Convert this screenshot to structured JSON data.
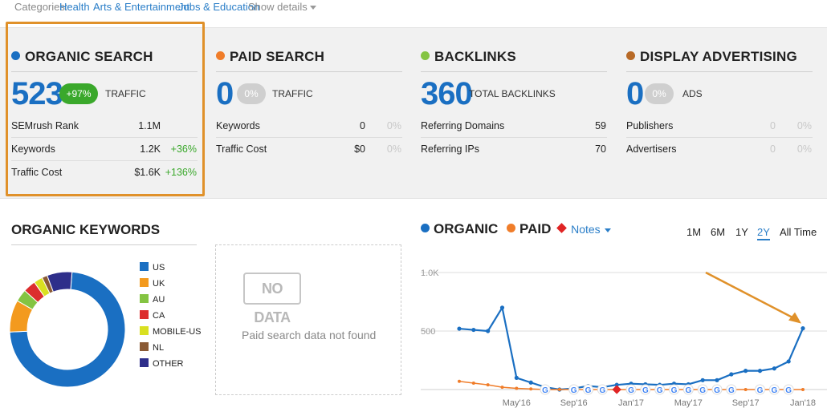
{
  "categories": {
    "label": "Categories:",
    "items": [
      "Health",
      "Arts & Entertainment",
      "Jobs & Education"
    ],
    "show_details": "Show details"
  },
  "colors": {
    "organic": "#1a6fc2",
    "paid": "#f07d2a",
    "backlinks": "#84c442",
    "display": "#b86a27",
    "positive": "#3aa82b",
    "highlight": "#e0912a"
  },
  "organic": {
    "title": "ORGANIC SEARCH",
    "value": "523",
    "change": "+97%",
    "unit": "TRAFFIC",
    "rows": [
      {
        "label": "SEMrush Rank",
        "value": "1.1M",
        "change": ""
      },
      {
        "label": "Keywords",
        "value": "1.2K",
        "change": "+36%"
      },
      {
        "label": "Traffic Cost",
        "value": "$1.6K",
        "change": "+136%"
      }
    ]
  },
  "paid": {
    "title": "PAID SEARCH",
    "value": "0",
    "change": "0%",
    "unit": "TRAFFIC",
    "rows": [
      {
        "label": "Keywords",
        "value": "0",
        "change": "0%"
      },
      {
        "label": "Traffic Cost",
        "value": "$0",
        "change": "0%"
      }
    ]
  },
  "backlinks": {
    "title": "BACKLINKS",
    "value": "360",
    "unit": "TOTAL BACKLINKS",
    "rows": [
      {
        "label": "Referring Domains",
        "value": "59"
      },
      {
        "label": "Referring IPs",
        "value": "70"
      }
    ]
  },
  "display": {
    "title": "DISPLAY ADVERTISING",
    "value": "0",
    "change": "0%",
    "unit": "ADS",
    "rows": [
      {
        "label": "Publishers",
        "value": "0",
        "change": "0%"
      },
      {
        "label": "Advertisers",
        "value": "0",
        "change": "0%"
      }
    ]
  },
  "organic_keywords": {
    "title": "ORGANIC KEYWORDS",
    "legend": [
      {
        "label": "US",
        "color": "#1a6fc2",
        "share": 0.73
      },
      {
        "label": "UK",
        "color": "#f39a1e",
        "share": 0.09
      },
      {
        "label": "AU",
        "color": "#84c442",
        "share": 0.035
      },
      {
        "label": "CA",
        "color": "#dc2e2e",
        "share": 0.035
      },
      {
        "label": "MOBILE-US",
        "color": "#d9e021",
        "share": 0.025
      },
      {
        "label": "NL",
        "color": "#8a5a35",
        "share": 0.015
      },
      {
        "label": "OTHER",
        "color": "#2e2e8a",
        "share": 0.07
      }
    ]
  },
  "paid_block": {
    "badge": "NO DATA",
    "message": "Paid search data not found"
  },
  "trend": {
    "legend": {
      "organic": "ORGANIC",
      "paid": "PAID",
      "notes": "Notes"
    },
    "ranges": [
      "1M",
      "6M",
      "1Y",
      "2Y",
      "All Time"
    ],
    "active_range": "2Y"
  },
  "chart_data": {
    "type": "line",
    "x": [
      "Feb'16",
      "Mar'16",
      "Apr'16",
      "Apr'16b",
      "May'16",
      "Jun'16",
      "Jul'16",
      "Aug'16",
      "Sep'16",
      "Oct'16",
      "Nov'16",
      "Dec'16",
      "Jan'17",
      "Feb'17",
      "Mar'17",
      "Apr'17",
      "May'17",
      "Jun'17",
      "Jul'17",
      "Aug'17",
      "Sep'17",
      "Oct'17",
      "Nov'17",
      "Dec'17",
      "Jan'18"
    ],
    "x_tick_labels": [
      "May'16",
      "Sep'16",
      "Jan'17",
      "May'17",
      "Sep'17",
      "Jan'18"
    ],
    "y_tick_labels": [
      "500",
      "1.0K"
    ],
    "ylim": [
      0,
      1000
    ],
    "series": [
      {
        "name": "ORGANIC",
        "color": "#1a6fc2",
        "values": [
          520,
          510,
          500,
          700,
          100,
          60,
          20,
          0,
          10,
          30,
          20,
          40,
          50,
          45,
          40,
          50,
          45,
          80,
          80,
          130,
          160,
          160,
          180,
          240,
          523
        ]
      },
      {
        "name": "PAID",
        "color": "#f07d2a",
        "values": [
          70,
          55,
          40,
          20,
          10,
          5,
          0,
          0,
          0,
          0,
          0,
          0,
          0,
          0,
          0,
          0,
          0,
          0,
          0,
          0,
          0,
          0,
          0,
          0,
          0
        ]
      }
    ],
    "note_markers": [
      6,
      8,
      9,
      10,
      12,
      13,
      14,
      15,
      16,
      17,
      18,
      19,
      21,
      22,
      23
    ],
    "red_marker": 11,
    "grid": true
  }
}
